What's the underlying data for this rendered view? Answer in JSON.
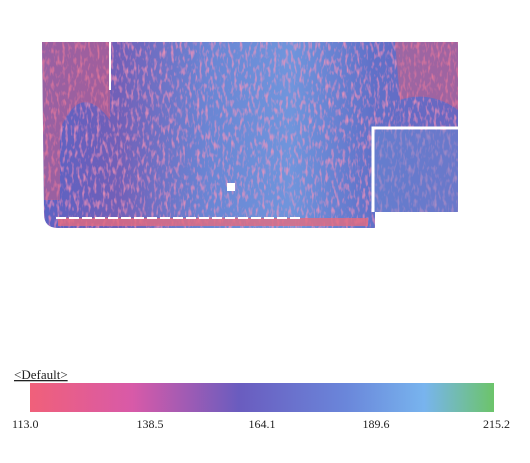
{
  "legend": {
    "title": "<Default>",
    "ticks": [
      "113.0",
      "138.5",
      "164.1",
      "189.6",
      "215.2"
    ]
  }
}
